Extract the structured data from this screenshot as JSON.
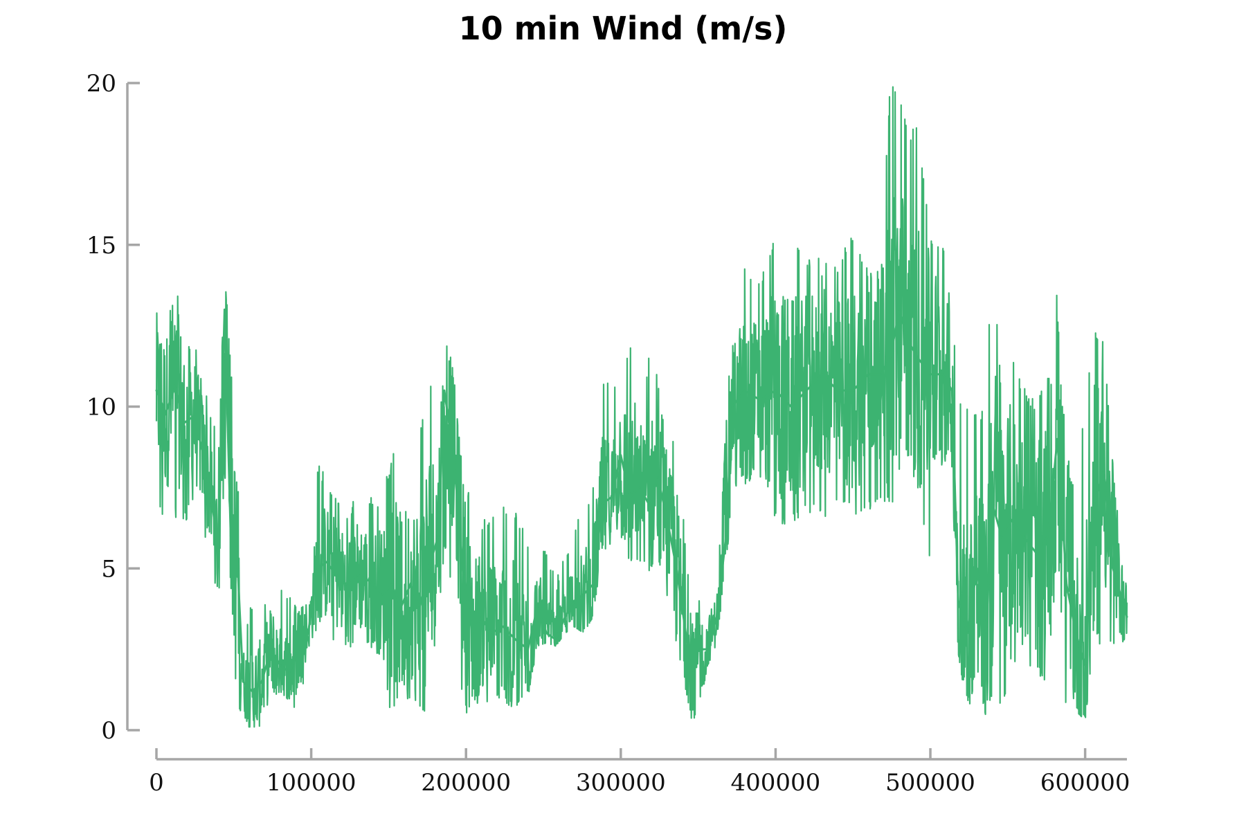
{
  "chart_data": {
    "type": "line",
    "title": "10 min Wind (m/s)",
    "xlabel": "",
    "ylabel": "",
    "xlim": [
      0,
      627000
    ],
    "ylim": [
      0,
      20
    ],
    "x_ticks": [
      0,
      100000,
      200000,
      300000,
      400000,
      500000,
      600000
    ],
    "x_tick_labels": [
      "0",
      "100000",
      "200000",
      "300000",
      "400000",
      "500000",
      "600000"
    ],
    "y_ticks": [
      0,
      5,
      10,
      15,
      20
    ],
    "y_tick_labels": [
      "0",
      "5",
      "10",
      "15",
      "20"
    ],
    "grid": false,
    "legend": "none",
    "colors": {
      "series": "#3cb371",
      "axis": "#a6a6a6"
    },
    "series": [
      {
        "x": [
          0,
          6000,
          12000,
          18000,
          24000,
          30000,
          36000,
          40000,
          44000,
          48000,
          52000,
          56000,
          62000,
          68000,
          74000,
          80000,
          86000,
          92000,
          98000,
          104000,
          110000,
          116000,
          122000,
          130000,
          138000,
          146000,
          152000,
          158000,
          164000,
          170000,
          176000,
          182000,
          186000,
          192000,
          198000,
          204000,
          210000,
          216000,
          224000,
          232000,
          240000,
          246000,
          252000,
          258000,
          264000,
          270000,
          276000,
          282000,
          288000,
          294000,
          300000,
          306000,
          312000,
          318000,
          324000,
          330000,
          336000,
          342000,
          346000,
          350000,
          356000,
          362000,
          368000,
          372000,
          380000,
          390000,
          400000,
          410000,
          420000,
          430000,
          440000,
          450000,
          460000,
          468000,
          474000,
          480000,
          486000,
          492000,
          500000,
          508000,
          514000,
          518000,
          524000,
          530000,
          536000,
          540000,
          546000,
          552000,
          560000,
          568000,
          576000,
          582000,
          588000,
          594000,
          600000,
          606000,
          612000,
          618000,
          624000,
          627000
        ],
        "y": [
          10.5,
          9.8,
          10.6,
          9.5,
          9.7,
          8.6,
          7.0,
          5.5,
          13.0,
          6.0,
          5.5,
          1.5,
          1.2,
          1.5,
          2.5,
          2.0,
          1.8,
          2.5,
          3.0,
          5.0,
          5.2,
          4.8,
          4.5,
          4.8,
          4.6,
          4.2,
          4.5,
          3.8,
          4.5,
          3.8,
          5.0,
          6.0,
          10.5,
          8.5,
          5.0,
          3.0,
          3.5,
          3.0,
          3.2,
          2.8,
          2.5,
          3.8,
          3.0,
          2.8,
          3.5,
          4.0,
          4.2,
          4.5,
          7.0,
          7.2,
          8.5,
          7.2,
          7.5,
          7.0,
          7.8,
          6.5,
          5.0,
          3.0,
          1.5,
          2.5,
          2.5,
          3.5,
          6.0,
          10.0,
          10.5,
          10.2,
          10.5,
          10.0,
          10.5,
          11.0,
          10.5,
          10.5,
          11.0,
          11.0,
          11.5,
          13.0,
          12.0,
          11.5,
          11.0,
          11.0,
          10.5,
          4.0,
          3.0,
          5.0,
          3.0,
          7.0,
          6.0,
          6.5,
          6.0,
          5.5,
          6.0,
          9.0,
          4.5,
          3.0,
          2.0,
          7.0,
          8.0,
          5.0,
          4.0,
          3.5
        ],
        "y_min": [
          7.0,
          6.3,
          6.5,
          6.3,
          7.0,
          6.2,
          5.2,
          3.8,
          8.0,
          4.5,
          0.5,
          0.1,
          0.1,
          0.1,
          1.0,
          1.2,
          0.9,
          0.1,
          2.5,
          3.2,
          3.0,
          2.7,
          2.5,
          2.6,
          2.6,
          1.8,
          0.4,
          1.4,
          0.7,
          0.6,
          0.2,
          3.5,
          5.5,
          4.2,
          0.5,
          0.6,
          0.8,
          0.6,
          1.0,
          0.4,
          1.0,
          2.6,
          2.7,
          2.6,
          3.0,
          3.2,
          3.0,
          3.5,
          5.5,
          5.8,
          6.0,
          5.0,
          5.0,
          4.8,
          5.0,
          3.8,
          2.5,
          0.9,
          0.1,
          0.4,
          2.0,
          2.6,
          5.0,
          7.5,
          7.5,
          7.8,
          6.5,
          6.2,
          6.8,
          6.4,
          6.8,
          6.6,
          6.7,
          7.2,
          6.6,
          8.0,
          8.5,
          7.3,
          5.2,
          7.0,
          7.8,
          2.4,
          0.5,
          1.8,
          0.4,
          1.0,
          0.5,
          2.0,
          1.5,
          1.8,
          1.0,
          1.5,
          0.4,
          0.6,
          0.3,
          2.8,
          2.5,
          2.6,
          2.5,
          2.3
        ],
        "y_max": [
          13.5,
          12.8,
          13.6,
          13.4,
          12.3,
          10.8,
          9.9,
          8.6,
          14.5,
          11.2,
          9.5,
          2.8,
          4.1,
          3.6,
          4.7,
          4.4,
          4.2,
          3.8,
          3.9,
          8.3,
          7.8,
          7.4,
          6.8,
          7.3,
          7.2,
          7.3,
          8.5,
          9.1,
          8.0,
          9.2,
          10.8,
          10.0,
          12.6,
          11.0,
          8.2,
          7.1,
          6.6,
          6.5,
          7.1,
          6.8,
          5.9,
          6.0,
          5.6,
          4.6,
          5.5,
          6.3,
          6.8,
          7.7,
          11.0,
          10.8,
          11.2,
          12.1,
          9.0,
          11.7,
          11.0,
          8.6,
          9.4,
          5.6,
          3.4,
          4.6,
          4.6,
          4.5,
          9.5,
          12.5,
          14.5,
          14.0,
          15.4,
          15.3,
          14.6,
          14.6,
          14.4,
          15.5,
          14.3,
          14.2,
          20.0,
          19.8,
          18.6,
          18.7,
          15.2,
          15.2,
          13.2,
          10.4,
          9.9,
          10.0,
          9.9,
          15.2,
          10.3,
          11.8,
          10.6,
          10.2,
          11.0,
          13.6,
          8.6,
          7.4,
          10.2,
          12.6,
          12.2,
          8.2,
          5.4,
          5.2
        ]
      }
    ]
  }
}
